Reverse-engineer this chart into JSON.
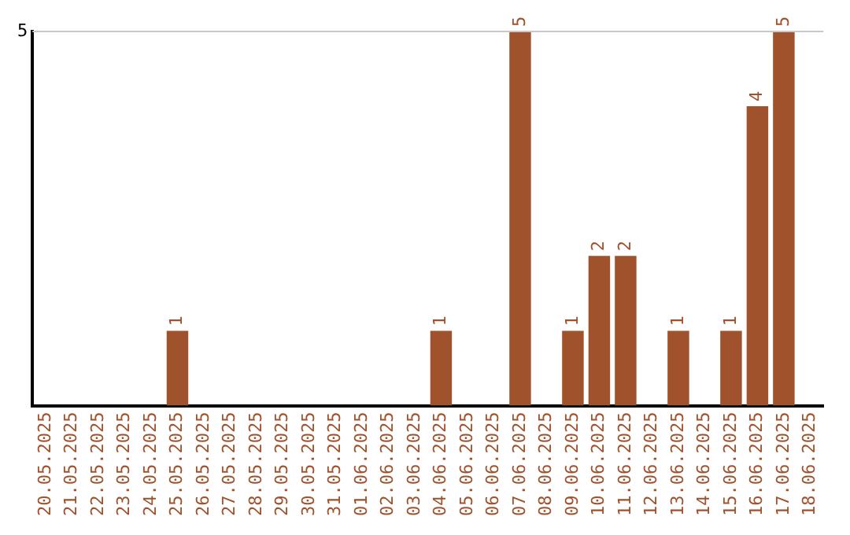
{
  "chart_data": {
    "type": "bar",
    "categories": [
      "20.05.2025",
      "21.05.2025",
      "22.05.2025",
      "23.05.2025",
      "24.05.2025",
      "25.05.2025",
      "26.05.2025",
      "27.05.2025",
      "28.05.2025",
      "29.05.2025",
      "30.05.2025",
      "31.05.2025",
      "01.06.2025",
      "02.06.2025",
      "03.06.2025",
      "04.06.2025",
      "05.06.2025",
      "06.06.2025",
      "07.06.2025",
      "08.06.2025",
      "09.06.2025",
      "10.06.2025",
      "11.06.2025",
      "12.06.2025",
      "13.06.2025",
      "14.06.2025",
      "15.06.2025",
      "16.06.2025",
      "17.06.2025",
      "18.06.2025"
    ],
    "values": [
      0,
      0,
      0,
      0,
      0,
      1,
      0,
      0,
      0,
      0,
      0,
      0,
      0,
      0,
      0,
      1,
      0,
      0,
      5,
      0,
      1,
      2,
      2,
      0,
      1,
      0,
      1,
      4,
      5,
      0
    ],
    "value_labels": [
      null,
      null,
      null,
      null,
      null,
      "1",
      null,
      null,
      null,
      null,
      null,
      null,
      null,
      null,
      null,
      "1",
      null,
      null,
      "5",
      null,
      "1",
      "2",
      "2",
      null,
      "1",
      null,
      "1",
      "4",
      "5",
      null
    ],
    "color": "#a0522d",
    "ylim": [
      0,
      5
    ],
    "yticks": [
      5
    ],
    "ref_lines": [
      {
        "axis": "y",
        "value": 5,
        "color": "#c8c8c8"
      }
    ],
    "legend": false
  }
}
